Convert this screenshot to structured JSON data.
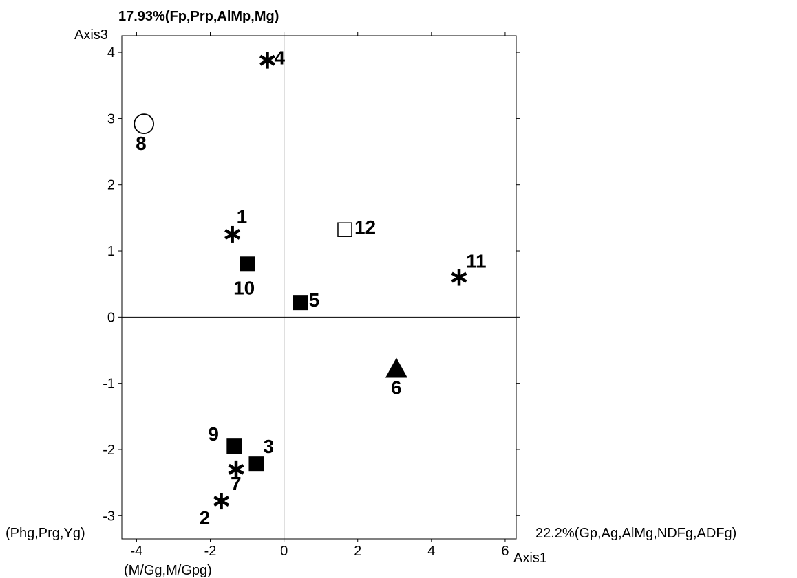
{
  "chart_data": {
    "type": "scatter",
    "title": "17.93%(Fp,Prp,AlMp,Mg)",
    "xlabel": "Axis1",
    "ylabel": "Axis3",
    "x_positive_label": "22.2%(Gp,Ag,AlMg,NDFg,ADFg)",
    "x_negative_label": "(Phg,Prg,Yg)",
    "y_negative_label": "(M/Gg,M/Gpg)",
    "xlim": [
      -4.4,
      6.3
    ],
    "ylim": [
      -3.35,
      4.25
    ],
    "x_ticks": [
      -4,
      -2,
      0,
      2,
      4,
      6
    ],
    "y_ticks": [
      -3,
      -2,
      -1,
      0,
      1,
      2,
      3,
      4
    ],
    "x_tick_labels": [
      "-4",
      "-2",
      "0",
      "2",
      "4",
      "6"
    ],
    "y_tick_labels": [
      "-3",
      "-2",
      "-1",
      "0",
      "1",
      "2",
      "3",
      "4"
    ],
    "grid": false,
    "points": [
      {
        "label": "1",
        "x": -1.4,
        "y": 1.25,
        "marker": "asterisk"
      },
      {
        "label": "2",
        "x": -1.7,
        "y": -2.78,
        "marker": "asterisk"
      },
      {
        "label": "3",
        "x": -0.75,
        "y": -2.22,
        "marker": "filled-square"
      },
      {
        "label": "4",
        "x": -0.45,
        "y": 3.88,
        "marker": "asterisk"
      },
      {
        "label": "5",
        "x": 0.45,
        "y": 0.22,
        "marker": "filled-square"
      },
      {
        "label": "6",
        "x": 3.05,
        "y": -0.77,
        "marker": "filled-triangle"
      },
      {
        "label": "7",
        "x": -1.3,
        "y": -2.3,
        "marker": "asterisk"
      },
      {
        "label": "8",
        "x": -3.8,
        "y": 2.92,
        "marker": "open-circle"
      },
      {
        "label": "9",
        "x": -1.35,
        "y": -1.95,
        "marker": "filled-square"
      },
      {
        "label": "10",
        "x": -1.0,
        "y": 0.8,
        "marker": "filled-square"
      },
      {
        "label": "11",
        "x": 4.75,
        "y": 0.6,
        "marker": "asterisk"
      },
      {
        "label": "12",
        "x": 1.65,
        "y": 1.32,
        "marker": "open-square"
      }
    ]
  }
}
